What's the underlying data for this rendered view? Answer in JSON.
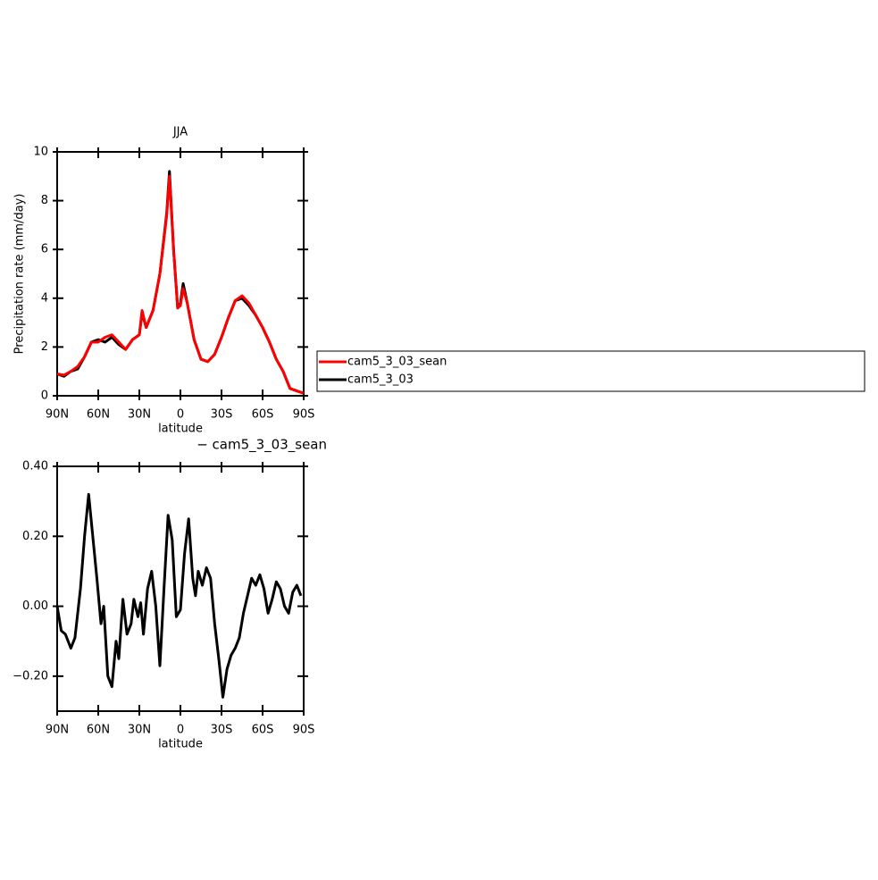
{
  "chart_data": [
    {
      "type": "line",
      "title": "JJA",
      "xlabel": "latitude",
      "ylabel": "Precipitation rate (mm/day)",
      "x": [
        90,
        85,
        80,
        75,
        70,
        65,
        60,
        55,
        50,
        45,
        40,
        35,
        30,
        28,
        25,
        20,
        15,
        10,
        8,
        5,
        2,
        0,
        -2,
        -5,
        -10,
        -15,
        -20,
        -25,
        -30,
        -35,
        -40,
        -45,
        -50,
        -55,
        -60,
        -65,
        -70,
        -75,
        -80,
        -85,
        -90
      ],
      "series": [
        {
          "name": "cam5_3_03_sean",
          "color": "#ff0000",
          "values": [
            0.9,
            0.85,
            1.0,
            1.2,
            1.6,
            2.2,
            2.2,
            2.4,
            2.5,
            2.2,
            1.9,
            2.3,
            2.5,
            3.5,
            2.8,
            3.5,
            5.0,
            7.4,
            9.0,
            6.0,
            3.6,
            3.7,
            4.4,
            3.8,
            2.3,
            1.5,
            1.4,
            1.7,
            2.4,
            3.2,
            3.9,
            4.1,
            3.8,
            3.3,
            2.8,
            2.2,
            1.5,
            1.0,
            0.3,
            0.2,
            0.1
          ]
        },
        {
          "name": "cam5_3_03",
          "color": "#000000",
          "values": [
            0.9,
            0.8,
            1.0,
            1.1,
            1.6,
            2.2,
            2.3,
            2.2,
            2.4,
            2.1,
            1.9,
            2.3,
            2.5,
            3.4,
            2.8,
            3.5,
            5.0,
            7.5,
            9.2,
            6.0,
            3.6,
            3.8,
            4.6,
            3.8,
            2.3,
            1.5,
            1.4,
            1.7,
            2.4,
            3.2,
            3.9,
            4.0,
            3.7,
            3.3,
            2.8,
            2.2,
            1.5,
            1.0,
            0.3,
            0.2,
            0.1
          ]
        }
      ],
      "xlim": [
        90,
        -90
      ],
      "xticks": [
        {
          "value": 90,
          "label": "90N"
        },
        {
          "value": 60,
          "label": "60N"
        },
        {
          "value": 30,
          "label": "30N"
        },
        0,
        {
          "value": -30,
          "label": "30S"
        },
        {
          "value": -60,
          "label": "60S"
        },
        {
          "value": -90,
          "label": "90S"
        }
      ],
      "ylim": [
        0,
        10
      ],
      "yticks": [
        0,
        2,
        4,
        6,
        8,
        10
      ],
      "legend": "right"
    },
    {
      "type": "line",
      "title": "− cam5_3_03_sean",
      "xlabel": "latitude",
      "color": "#000000",
      "x": [
        90,
        87,
        84,
        80,
        77,
        73,
        70,
        67,
        64,
        61,
        58,
        56,
        53,
        50,
        47,
        45,
        42,
        39,
        36,
        34,
        31,
        29,
        27,
        24,
        21,
        18,
        15,
        12,
        9,
        6,
        3,
        0,
        -3,
        -6,
        -9,
        -11,
        -13,
        -16,
        -19,
        -22,
        -25,
        -28,
        -31,
        -34,
        -37,
        -40,
        -43,
        -46,
        -49,
        -52,
        -55,
        -58,
        -61,
        -64,
        -67,
        -70,
        -73,
        -76,
        -79,
        -82,
        -85,
        -88
      ],
      "values": [
        0.0,
        -0.07,
        -0.08,
        -0.12,
        -0.09,
        0.05,
        0.2,
        0.32,
        0.2,
        0.08,
        -0.05,
        0.0,
        -0.2,
        -0.23,
        -0.1,
        -0.15,
        0.02,
        -0.08,
        -0.05,
        0.02,
        -0.03,
        0.01,
        -0.08,
        0.05,
        0.1,
        0.0,
        -0.17,
        0.05,
        0.26,
        0.19,
        -0.03,
        -0.01,
        0.15,
        0.25,
        0.08,
        0.03,
        0.1,
        0.06,
        0.11,
        0.08,
        -0.05,
        -0.15,
        -0.26,
        -0.18,
        -0.14,
        -0.12,
        -0.09,
        -0.02,
        0.03,
        0.08,
        0.06,
        0.09,
        0.05,
        -0.02,
        0.02,
        0.07,
        0.05,
        0.0,
        -0.02,
        0.04,
        0.06,
        0.03
      ],
      "xlim": [
        90,
        -90
      ],
      "xticks": [
        {
          "value": 90,
          "label": "90N"
        },
        {
          "value": 60,
          "label": "60N"
        },
        {
          "value": 30,
          "label": "30N"
        },
        0,
        {
          "value": -30,
          "label": "30S"
        },
        {
          "value": -60,
          "label": "60S"
        },
        {
          "value": -90,
          "label": "90S"
        }
      ],
      "ylim": [
        -0.3,
        0.4
      ],
      "yticks": [
        {
          "value": -0.2,
          "label": "−0.20"
        },
        {
          "value": 0,
          "label": "0.00"
        },
        {
          "value": 0.2,
          "label": "0.20"
        },
        {
          "value": 0.4,
          "label": "0.40"
        }
      ]
    }
  ]
}
